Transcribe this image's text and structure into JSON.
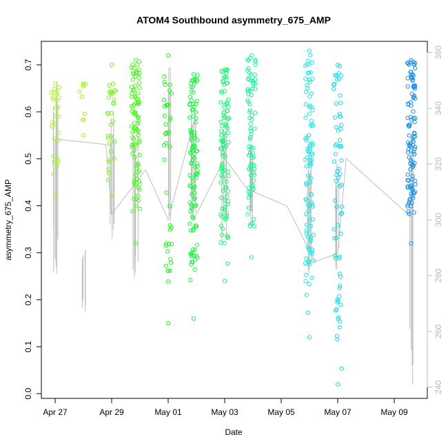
{
  "chart_data": {
    "type": "scatter",
    "title": "ATOM4 Southbound asymmetry_675_AMP",
    "xlabel": "Date",
    "ylabel": "asymmetry_675_AMP",
    "x_range": [
      "Apr 26 22:00",
      "May 10 06:00"
    ],
    "ylim": [
      -0.01,
      0.75
    ],
    "y2lim": [
      236,
      364
    ],
    "x_ticks": [
      {
        "label": "Apr 27",
        "day": 27
      },
      {
        "label": "Apr 29",
        "day": 29
      },
      {
        "label": "May 01",
        "day": 31
      },
      {
        "label": "May 03",
        "day": 33
      },
      {
        "label": "May 05",
        "day": 35
      },
      {
        "label": "May 07",
        "day": 37
      },
      {
        "label": "May 09",
        "day": 39
      }
    ],
    "y_ticks": [
      0.0,
      0.1,
      0.2,
      0.3,
      0.4,
      0.5,
      0.6,
      0.7
    ],
    "y2_ticks": [
      240,
      260,
      280,
      300,
      320,
      340,
      360
    ],
    "colors": {
      "early": "#a3f51e",
      "mid": "#1cf51c",
      "late": "#18e8e8",
      "end": "#1c8fe8",
      "line": "#bdbdbd",
      "right_axis": "#b8b8b8"
    },
    "point_clusters": [
      {
        "day": 27.0,
        "ymin": 0.42,
        "ymax": 0.66,
        "n": 26,
        "color": "#a3f51e"
      },
      {
        "day": 28.0,
        "ymin": 0.55,
        "ymax": 0.66,
        "n": 8,
        "color": "#a3f51e"
      },
      {
        "day": 29.0,
        "ymin": 0.42,
        "ymax": 0.7,
        "n": 30,
        "color": "#7af51c"
      },
      {
        "day": 29.85,
        "ymin": 0.32,
        "ymax": 0.71,
        "n": 90,
        "color": "#4af51c"
      },
      {
        "day": 31.0,
        "ymin": 0.15,
        "ymax": 0.72,
        "n": 40,
        "color": "#1cf51c"
      },
      {
        "day": 31.9,
        "ymin": 0.16,
        "ymax": 0.68,
        "n": 110,
        "color": "#1cf540"
      },
      {
        "day": 33.0,
        "ymin": 0.24,
        "ymax": 0.69,
        "n": 100,
        "color": "#1cf575"
      },
      {
        "day": 33.95,
        "ymin": 0.29,
        "ymax": 0.72,
        "n": 80,
        "color": "#1cf595"
      },
      {
        "day": 36.0,
        "ymin": 0.12,
        "ymax": 0.73,
        "n": 100,
        "color": "#18e8e8"
      },
      {
        "day": 37.0,
        "ymin": 0.02,
        "ymax": 0.7,
        "n": 70,
        "color": "#18d8e8"
      },
      {
        "day": 39.6,
        "ymin": 0.32,
        "ymax": 0.71,
        "n": 110,
        "color": "#1c8fe8"
      }
    ],
    "line_series": [
      {
        "day": 27.0,
        "value": 286
      },
      {
        "day": 27.0,
        "value": 329
      },
      {
        "day": 28.8,
        "value": 327
      },
      {
        "day": 29.0,
        "value": 302
      },
      {
        "day": 30.2,
        "value": 318
      },
      {
        "day": 31.0,
        "value": 300
      },
      {
        "day": 31.9,
        "value": 335
      },
      {
        "day": 31.9,
        "value": 300
      },
      {
        "day": 33.0,
        "value": 322
      },
      {
        "day": 33.8,
        "value": 311
      },
      {
        "day": 35.2,
        "value": 305
      },
      {
        "day": 36.2,
        "value": 285
      },
      {
        "day": 37.0,
        "value": 288
      },
      {
        "day": 37.3,
        "value": 322
      },
      {
        "day": 39.6,
        "value": 301
      }
    ],
    "vertical_spans": [
      {
        "day": 27.0,
        "low": 276,
        "high": 358
      },
      {
        "day": 28.0,
        "low": 266,
        "high": 290
      },
      {
        "day": 29.0,
        "low": 292,
        "high": 340
      },
      {
        "day": 29.85,
        "low": 277,
        "high": 338
      },
      {
        "day": 31.0,
        "low": 296,
        "high": 355
      },
      {
        "day": 31.9,
        "low": 294,
        "high": 344
      },
      {
        "day": 33.0,
        "low": 288,
        "high": 336
      },
      {
        "day": 33.95,
        "low": 296,
        "high": 330
      },
      {
        "day": 36.0,
        "low": 280,
        "high": 330
      },
      {
        "day": 37.0,
        "low": 281,
        "high": 323
      },
      {
        "day": 39.6,
        "low": 240,
        "high": 335
      }
    ],
    "grid": false,
    "legend": "none"
  }
}
